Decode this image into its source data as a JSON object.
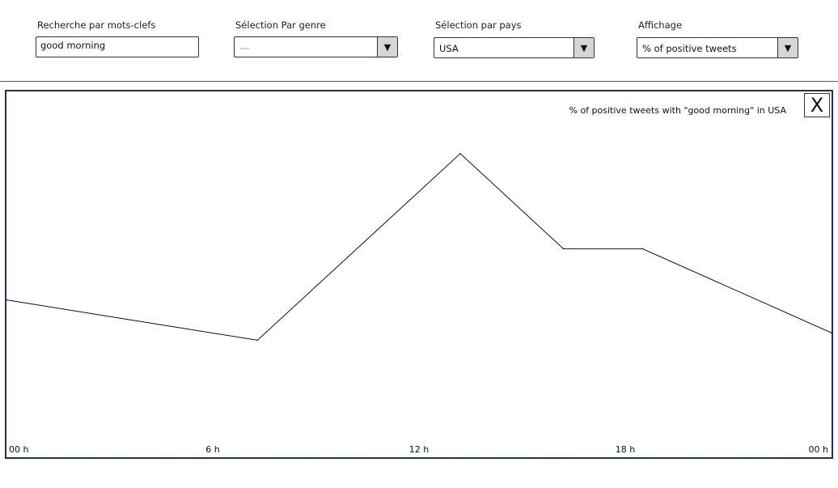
{
  "filters": {
    "keyword": {
      "label": "Recherche par mots-clefs",
      "value": "good morning"
    },
    "genre": {
      "label": "Sélection Par genre",
      "selected": "---",
      "arrow_icon": "triangle-down-icon"
    },
    "country": {
      "label": "Sélection par pays",
      "selected": "USA",
      "arrow_icon": "triangle-down-icon"
    },
    "display": {
      "label": "Affichage",
      "selected": "% of positive tweets",
      "arrow_icon": "triangle-down-icon"
    }
  },
  "panel": {
    "close_label": "X",
    "border_color": "#1f2f6e"
  },
  "chart_data": {
    "type": "line",
    "title": "% of positive tweets with \"good morning\" in USA",
    "xlabel": "",
    "ylabel": "",
    "x_ticks": [
      {
        "x": 0,
        "label": "00 h"
      },
      {
        "x": 6,
        "label": "6 h"
      },
      {
        "x": 12,
        "label": "12 h"
      },
      {
        "x": 18,
        "label": "18 h"
      },
      {
        "x": 24,
        "label": "00 h"
      }
    ],
    "xlim": [
      0,
      24
    ],
    "ylim": [
      0,
      100
    ],
    "grid": false,
    "series": [
      {
        "x": [
          0,
          7.3,
          13.2,
          16.2,
          18.5,
          24
        ],
        "values": [
          43,
          32,
          83,
          57,
          57,
          34
        ]
      }
    ]
  }
}
